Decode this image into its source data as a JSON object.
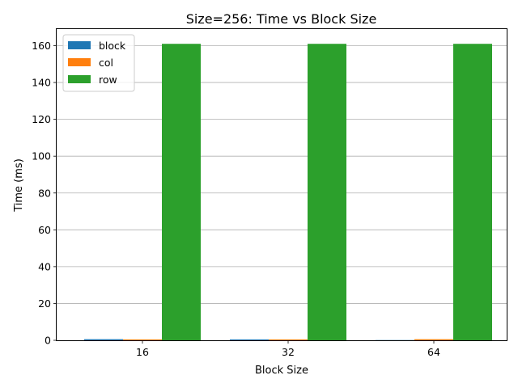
{
  "chart_data": {
    "type": "bar",
    "title": "Size=256: Time vs Block Size",
    "xlabel": "Block Size",
    "ylabel": "Time (ms)",
    "categories": [
      "16",
      "32",
      "64"
    ],
    "ylim": [
      0,
      169
    ],
    "yticks": [
      0,
      20,
      40,
      60,
      80,
      100,
      120,
      140,
      160
    ],
    "grid": "y",
    "legend_position": "top-left",
    "series": [
      {
        "name": "block",
        "color": "#1f77b4",
        "values": [
          0.6,
          0.5,
          0.1
        ]
      },
      {
        "name": "col",
        "color": "#ff7f0e",
        "values": [
          0.5,
          0.5,
          0.6
        ]
      },
      {
        "name": "row",
        "color": "#2ca02c",
        "values": [
          161,
          161,
          161
        ]
      }
    ]
  }
}
